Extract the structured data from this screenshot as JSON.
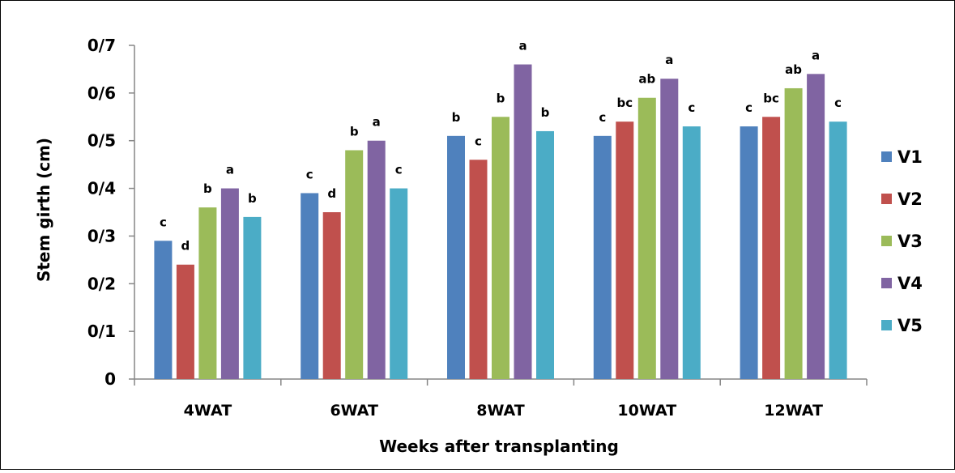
{
  "chart_data": {
    "type": "bar",
    "title": "",
    "xlabel": "Weeks after transplanting",
    "ylabel": "Stem girth (cm)",
    "ylim": [
      0,
      0.7
    ],
    "yticks": [
      0,
      0.1,
      0.2,
      0.3,
      0.4,
      0.5,
      0.6,
      0.7
    ],
    "ytick_labels": [
      "0",
      "0/1",
      "0/2",
      "0/3",
      "0/4",
      "0/5",
      "0/6",
      "0/7"
    ],
    "categories": [
      "4WAT",
      "6WAT",
      "8WAT",
      "10WAT",
      "12WAT"
    ],
    "series": [
      {
        "name": "V1",
        "color": "#4f81bd",
        "values": [
          0.29,
          0.39,
          0.51,
          0.51,
          0.53
        ],
        "labels": [
          "c",
          "c",
          "b",
          "c",
          "c"
        ]
      },
      {
        "name": "V2",
        "color": "#c0504d",
        "values": [
          0.24,
          0.35,
          0.46,
          0.54,
          0.55
        ],
        "labels": [
          "d",
          "d",
          "c",
          "bc",
          "bc"
        ]
      },
      {
        "name": "V3",
        "color": "#9bbb59",
        "values": [
          0.36,
          0.48,
          0.55,
          0.59,
          0.61
        ],
        "labels": [
          "b",
          "b",
          "b",
          "ab",
          "ab"
        ]
      },
      {
        "name": "V4",
        "color": "#8064a2",
        "values": [
          0.4,
          0.5,
          0.66,
          0.63,
          0.64
        ],
        "labels": [
          "a",
          "a",
          "a",
          "a",
          "a"
        ]
      },
      {
        "name": "V5",
        "color": "#4bacc6",
        "values": [
          0.34,
          0.4,
          0.52,
          0.53,
          0.54
        ],
        "labels": [
          "b",
          "c",
          "b",
          "c",
          "c"
        ]
      }
    ],
    "grid": false,
    "legend_position": "right"
  }
}
